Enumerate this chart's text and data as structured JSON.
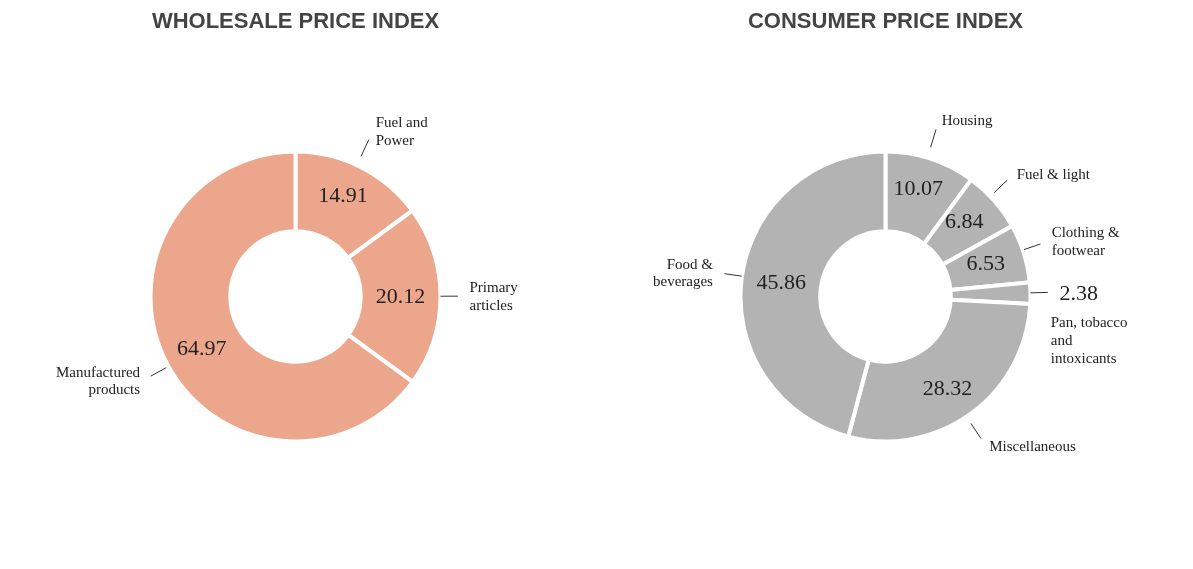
{
  "chart_data": [
    {
      "type": "donut",
      "title": "WHOLESALE PRICE INDEX",
      "categories": [
        "Fuel and Power",
        "Primary articles",
        "Manufactured products"
      ],
      "values": [
        14.91,
        20.12,
        64.97
      ],
      "colors": [
        "#eba68c",
        "#eba68c",
        "#eba68c"
      ],
      "data_labels": true,
      "legend": false
    },
    {
      "type": "donut",
      "title": "CONSUMER PRICE INDEX",
      "categories": [
        "Housing",
        "Fuel & light",
        "Clothing & footwear",
        "Pan, tobacco and intoxicants",
        "Miscellaneous",
        "Food & beverages"
      ],
      "values": [
        10.07,
        6.84,
        6.53,
        2.38,
        28.32,
        45.86
      ],
      "colors": [
        "#b3b3b3",
        "#b3b3b3",
        "#b3b3b3",
        "#b3b3b3",
        "#b3b3b3",
        "#b3b3b3"
      ],
      "data_labels": true,
      "legend": false
    }
  ]
}
